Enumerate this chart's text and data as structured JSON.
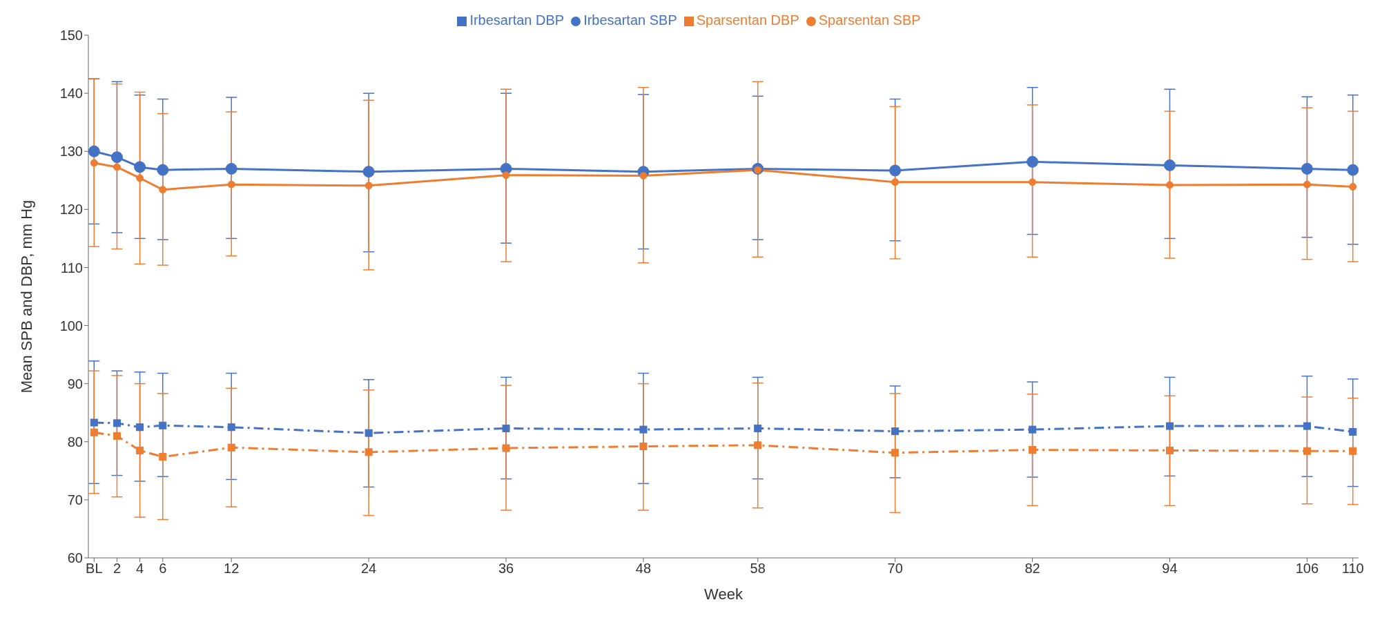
{
  "chart_data": {
    "type": "line",
    "xlabel": "Week",
    "ylabel": "Mean SPB and DBP, mm Hg",
    "x": [
      0,
      2,
      4,
      6,
      12,
      24,
      36,
      48,
      58,
      70,
      82,
      94,
      106,
      110
    ],
    "xlim": [
      -0.5,
      110.5
    ],
    "xticks": [
      {
        "value": 0,
        "label": "BL"
      },
      2,
      4,
      6,
      12,
      24,
      36,
      48,
      58,
      70,
      82,
      94,
      106,
      110
    ],
    "ylim": [
      60,
      150
    ],
    "yticks": [
      60,
      70,
      80,
      90,
      100,
      110,
      120,
      130,
      140,
      150
    ],
    "grid": false,
    "legend": "top",
    "series": [
      {
        "name": "Irbesartan SBP",
        "color": "#4472c4",
        "marker": "circle",
        "line_style": "solid",
        "values": [
          130,
          129,
          127.3,
          126.8,
          127,
          126.5,
          127,
          126.5,
          127,
          126.7,
          128.2,
          127.6,
          127,
          126.8
        ],
        "errors": [
          [
            117.5,
            142.5
          ],
          [
            116,
            142
          ],
          [
            115,
            139.7
          ],
          [
            114.8,
            139
          ],
          [
            115,
            139.3
          ],
          [
            112.7,
            140
          ],
          [
            114.2,
            140
          ],
          [
            113.2,
            139.8
          ],
          [
            114.8,
            139.5
          ],
          [
            114.6,
            139
          ],
          [
            115.7,
            141
          ],
          [
            115,
            140.7
          ],
          [
            115.2,
            139.4
          ],
          [
            114,
            139.7
          ]
        ]
      },
      {
        "name": "Irbesartan DBP",
        "color": "#4472c4",
        "marker": "square",
        "line_style": "dashed",
        "values": [
          83.3,
          83.2,
          82.5,
          82.8,
          82.5,
          81.5,
          82.3,
          82.1,
          82.3,
          81.8,
          82.1,
          82.7,
          82.7,
          81.7
        ],
        "errors": [
          [
            72.8,
            93.9
          ],
          [
            74.2,
            92.2
          ],
          [
            73.2,
            92
          ],
          [
            74,
            91.8
          ],
          [
            73.5,
            91.8
          ],
          [
            72.2,
            90.7
          ],
          [
            73.6,
            91.1
          ],
          [
            72.8,
            91.8
          ],
          [
            73.6,
            91.1
          ],
          [
            73.8,
            89.6
          ],
          [
            73.9,
            90.3
          ],
          [
            74.1,
            91.1
          ],
          [
            74,
            91.3
          ],
          [
            72.3,
            90.8
          ]
        ]
      },
      {
        "name": "Sparsentan SBP",
        "color": "#ed7d31",
        "marker": "circle",
        "line_style": "solid",
        "values": [
          128,
          127.3,
          125.4,
          123.4,
          124.3,
          124.1,
          125.9,
          125.8,
          126.8,
          124.7,
          124.7,
          124.2,
          124.3,
          123.9
        ],
        "errors": [
          [
            113.6,
            142.5
          ],
          [
            113.2,
            141.6
          ],
          [
            110.6,
            140.2
          ],
          [
            110.4,
            136.5
          ],
          [
            112,
            136.8
          ],
          [
            109.6,
            138.8
          ],
          [
            111,
            140.7
          ],
          [
            110.8,
            141
          ],
          [
            111.8,
            142
          ],
          [
            111.5,
            137.7
          ],
          [
            111.8,
            138
          ],
          [
            111.6,
            136.9
          ],
          [
            111.4,
            137.5
          ],
          [
            111,
            136.9
          ]
        ]
      },
      {
        "name": "Sparsentan DBP",
        "color": "#ed7d31",
        "marker": "square",
        "line_style": "dashed",
        "values": [
          81.6,
          81,
          78.5,
          77.4,
          79,
          78.2,
          78.9,
          79.2,
          79.4,
          78.1,
          78.6,
          78.5,
          78.4,
          78.4
        ],
        "errors": [
          [
            71.1,
            92.2
          ],
          [
            70.5,
            91.4
          ],
          [
            67,
            90
          ],
          [
            66.6,
            88.3
          ],
          [
            68.8,
            89.2
          ],
          [
            67.3,
            88.9
          ],
          [
            68.2,
            89.7
          ],
          [
            68.2,
            90
          ],
          [
            68.6,
            90.1
          ],
          [
            67.8,
            88.3
          ],
          [
            69,
            88.2
          ],
          [
            69,
            87.9
          ],
          [
            69.3,
            87.7
          ],
          [
            69.2,
            87.5
          ]
        ]
      }
    ]
  }
}
